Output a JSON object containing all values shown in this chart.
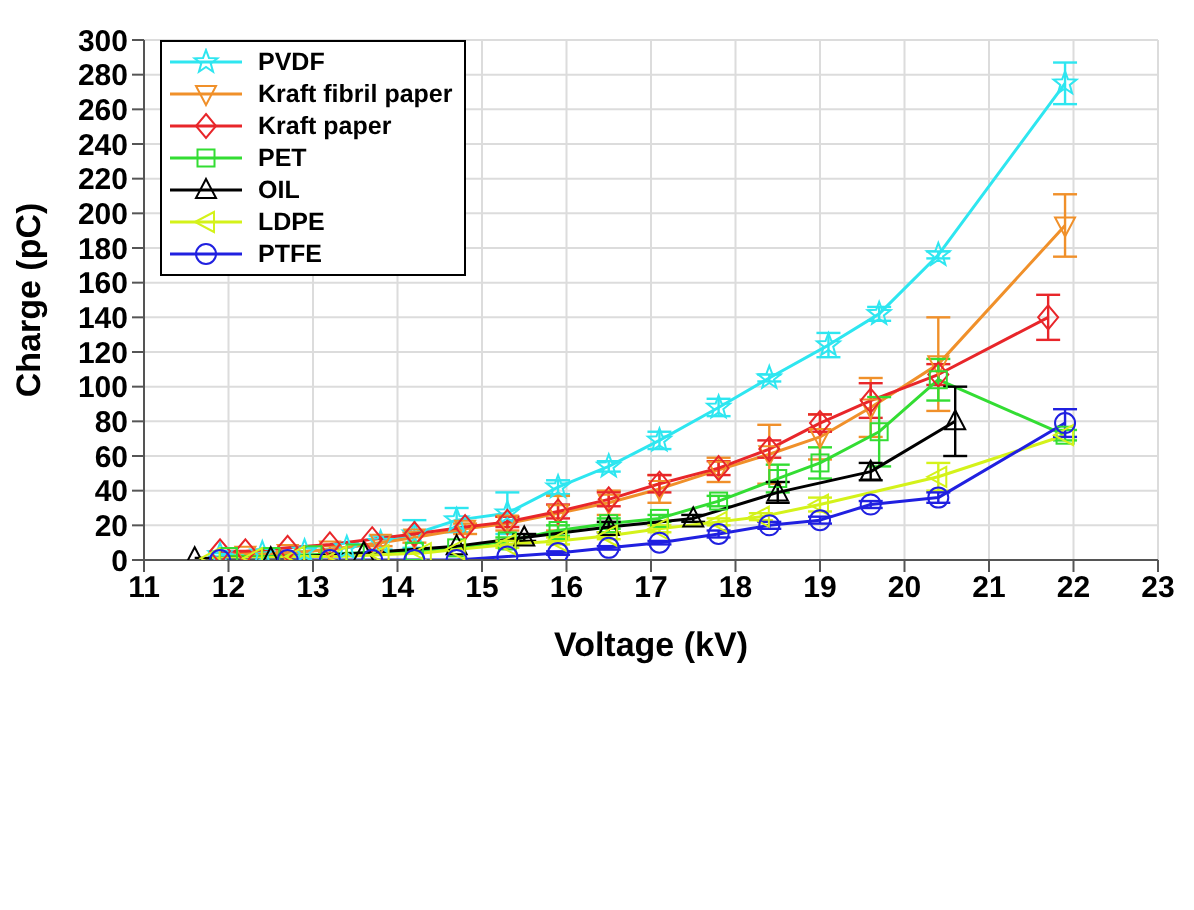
{
  "chart_data": {
    "type": "line",
    "xlabel": "Voltage (kV)",
    "ylabel": "Charge (pC)",
    "xlim": [
      11,
      23
    ],
    "xticks": [
      11,
      12,
      13,
      14,
      15,
      16,
      17,
      18,
      19,
      20,
      21,
      22,
      23
    ],
    "ylim": [
      0,
      300
    ],
    "yticks": [
      0,
      20,
      40,
      60,
      80,
      100,
      120,
      140,
      160,
      180,
      200,
      220,
      240,
      260,
      280,
      300
    ],
    "grid": true,
    "legend": "top left",
    "line_style": "solid",
    "series": [
      {
        "name": "PVDF",
        "color": "#2ee6f0",
        "marker": "star",
        "x": [
          11.9,
          12.4,
          12.9,
          13.4,
          13.8,
          14.2,
          14.7,
          15.3,
          15.9,
          16.5,
          17.1,
          17.8,
          18.4,
          19.1,
          19.7,
          20.4,
          21.9
        ],
        "values": [
          3,
          4,
          5,
          7,
          10,
          15,
          23,
          27,
          42,
          54,
          69,
          88,
          105,
          124,
          142,
          176,
          275
        ],
        "errors": [
          1,
          1,
          2,
          3,
          4,
          8,
          7,
          12,
          4,
          3,
          5,
          5,
          2,
          7,
          4,
          2,
          12
        ]
      },
      {
        "name": "Kraft fibril paper",
        "color": "#f0902a",
        "marker": "triangle_down",
        "x": [
          12.2,
          12.7,
          13.2,
          13.8,
          14.2,
          14.8,
          15.3,
          15.9,
          16.5,
          17.1,
          17.8,
          18.4,
          19.0,
          19.6,
          20.4,
          21.9
        ],
        "values": [
          3,
          4,
          6,
          10,
          13,
          18,
          21,
          27,
          33,
          41,
          52,
          61,
          71,
          88,
          113,
          193
        ],
        "errors": [
          1,
          1,
          2,
          2,
          3,
          3,
          4,
          10,
          7,
          8,
          7,
          17,
          13,
          17,
          27,
          18
        ]
      },
      {
        "name": "Kraft paper",
        "color": "#e8262a",
        "marker": "diamond",
        "x": [
          11.9,
          12.2,
          12.7,
          13.2,
          13.7,
          14.2,
          14.8,
          15.3,
          15.9,
          16.5,
          17.1,
          17.8,
          18.4,
          19.0,
          19.6,
          20.4,
          21.7
        ],
        "values": [
          5,
          5,
          7,
          9,
          12,
          15,
          19,
          22,
          28,
          35,
          44,
          53,
          64,
          79,
          92,
          107,
          140
        ],
        "errors": [
          null,
          null,
          null,
          null,
          null,
          null,
          null,
          3,
          4,
          4,
          5,
          4,
          5,
          5,
          10,
          6,
          13
        ]
      },
      {
        "name": "PET",
        "color": "#33dd33",
        "marker": "square",
        "x": [
          12.0,
          12.5,
          13.0,
          13.5,
          14.2,
          14.7,
          15.3,
          15.9,
          16.5,
          17.1,
          17.8,
          18.5,
          19.0,
          19.7,
          20.4,
          21.9
        ],
        "values": [
          2,
          2,
          3,
          4,
          5,
          7,
          11,
          17,
          21,
          24,
          34,
          47,
          56,
          74,
          104,
          72
        ],
        "errors": [
          null,
          null,
          null,
          null,
          null,
          null,
          2,
          3,
          3,
          2,
          3,
          8,
          9,
          20,
          12,
          3
        ]
      },
      {
        "name": "OIL",
        "color": "#000000",
        "marker": "triangle",
        "x": [
          11.6,
          12.5,
          13.6,
          14.7,
          15.5,
          16.5,
          17.5,
          18.5,
          19.6,
          20.6
        ],
        "values": [
          1,
          1,
          4,
          8,
          13,
          19,
          24,
          39,
          51,
          80
        ],
        "errors": [
          null,
          null,
          null,
          null,
          2,
          3,
          2,
          6,
          5,
          20
        ]
      },
      {
        "name": "LDPE",
        "color": "#d4f21a",
        "marker": "triangle_left",
        "x": [
          11.8,
          12.3,
          12.8,
          13.3,
          13.8,
          14.3,
          14.7,
          15.3,
          15.9,
          16.5,
          17.1,
          17.8,
          18.3,
          19.0,
          20.4,
          21.9
        ],
        "values": [
          1,
          1,
          2,
          2,
          3,
          4,
          6,
          9,
          11,
          14,
          18,
          22,
          25,
          32,
          48,
          72
        ],
        "errors": [
          null,
          null,
          null,
          null,
          null,
          null,
          null,
          2,
          2,
          2,
          2,
          2,
          2,
          4,
          8,
          null
        ]
      },
      {
        "name": "PTFE",
        "color": "#2020e0",
        "marker": "circle",
        "x": [
          11.9,
          12.7,
          13.2,
          13.7,
          14.2,
          14.7,
          15.3,
          15.9,
          16.5,
          17.1,
          17.8,
          18.4,
          19.0,
          19.6,
          20.4,
          21.9
        ],
        "values": [
          0,
          0,
          0,
          0,
          0,
          0,
          2,
          4,
          7,
          10,
          15,
          20,
          23,
          32,
          36,
          79
        ],
        "errors": [
          null,
          null,
          null,
          null,
          null,
          null,
          null,
          1,
          1,
          1,
          2,
          2,
          2,
          2,
          3,
          8
        ]
      }
    ]
  }
}
